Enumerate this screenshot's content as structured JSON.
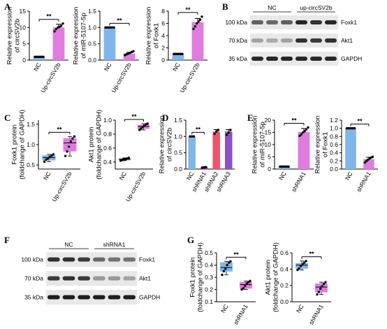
{
  "panels": {
    "A": {
      "label": "A"
    },
    "B": {
      "label": "B"
    },
    "C": {
      "label": "C"
    },
    "D": {
      "label": "D"
    },
    "E": {
      "label": "E"
    },
    "F": {
      "label": "F"
    },
    "G": {
      "label": "G"
    }
  },
  "colors": {
    "blue": "#7fb6ea",
    "pink": "#e07ce0",
    "red": "#f0566a",
    "magenta": "#d0309a",
    "purple": "#8a50c8",
    "dots": "#000000"
  },
  "chart_data": [
    {
      "id": "A1",
      "type": "bar",
      "title": "",
      "ylabel": "Relative expression of circSV2b",
      "ylim": [
        0,
        15
      ],
      "yticks": [
        0,
        5,
        10,
        15
      ],
      "categories": [
        "NC",
        "Up-circSV2b"
      ],
      "values": [
        1,
        10
      ],
      "errors": [
        0,
        1
      ],
      "colors": [
        "#7fb6ea",
        "#e07ce0"
      ],
      "significance": "**",
      "points": [
        [
          1,
          1,
          1,
          1,
          1,
          1
        ],
        [
          8.8,
          9.5,
          10,
          10.2,
          10.5,
          11.2
        ]
      ]
    },
    {
      "id": "A2",
      "type": "bar",
      "title": "",
      "ylabel": "Relative expression of miR-5107-5p",
      "ylim": [
        0,
        1.5
      ],
      "yticks": [
        0,
        0.5,
        1,
        1.5
      ],
      "categories": [
        "NC",
        "Up-circSV2b"
      ],
      "values": [
        1,
        0.2
      ],
      "errors": [
        0,
        0.04
      ],
      "colors": [
        "#7fb6ea",
        "#e07ce0"
      ],
      "significance": "**",
      "points": [
        [
          1,
          1,
          1,
          1,
          1,
          1
        ],
        [
          0.15,
          0.18,
          0.2,
          0.22,
          0.25,
          0.27
        ]
      ]
    },
    {
      "id": "A3",
      "type": "bar",
      "title": "",
      "ylabel": "Relative expression of Foxk1",
      "ylim": [
        0,
        8
      ],
      "yticks": [
        0,
        2,
        4,
        6,
        8
      ],
      "categories": [
        "NC",
        "Up-circSV2b"
      ],
      "values": [
        1,
        6.2
      ],
      "errors": [
        0,
        0.6
      ],
      "colors": [
        "#7fb6ea",
        "#e07ce0"
      ],
      "significance": "**",
      "points": [
        [
          1,
          1,
          1,
          1,
          1,
          1
        ],
        [
          5.1,
          5.5,
          6,
          6.3,
          6.6,
          7.1
        ]
      ]
    },
    {
      "id": "C1",
      "type": "box",
      "ylabel": "Foxk1 protein (foldchange of GAPDH)",
      "ylim": [
        0.4,
        1.6
      ],
      "yticks": [
        0.5,
        1.0,
        1.5
      ],
      "categories": [
        "NC",
        "Up-circSV2b"
      ],
      "colors": [
        "#7fb6ea",
        "#e07ce0"
      ],
      "significance": "**",
      "boxes": [
        {
          "min": 0.58,
          "q1": 0.62,
          "median": 0.68,
          "q3": 0.73,
          "max": 0.76
        },
        {
          "min": 0.72,
          "q1": 0.84,
          "median": 1.04,
          "q3": 1.15,
          "max": 1.2
        }
      ],
      "points": [
        [
          0.58,
          0.63,
          0.66,
          0.7,
          0.73,
          0.76
        ],
        [
          0.72,
          0.83,
          0.95,
          1.08,
          1.15,
          1.2
        ]
      ]
    },
    {
      "id": "C2",
      "type": "box",
      "ylabel": "Akt1 protein (foldchange of GAPDH)",
      "ylim": [
        0.3,
        1.0
      ],
      "yticks": [
        0.4,
        0.6,
        0.8,
        1.0
      ],
      "categories": [
        "NC",
        "Up-circSV2b"
      ],
      "colors": [
        "#7fb6ea",
        "#e07ce0"
      ],
      "significance": "**",
      "boxes": [
        {
          "min": 0.42,
          "q1": 0.43,
          "median": 0.44,
          "q3": 0.45,
          "max": 0.46
        },
        {
          "min": 0.86,
          "q1": 0.88,
          "median": 0.91,
          "q3": 0.93,
          "max": 0.95
        }
      ],
      "points": [
        [
          0.42,
          0.43,
          0.44,
          0.44,
          0.45,
          0.46
        ],
        [
          0.86,
          0.88,
          0.9,
          0.92,
          0.94,
          0.95
        ]
      ]
    },
    {
      "id": "D",
      "type": "bar",
      "ylabel": "Relative expression of circSV2b",
      "ylim": [
        0,
        1.5
      ],
      "yticks": [
        0.0,
        0.5,
        1.0,
        1.5
      ],
      "categories": [
        "NC",
        "shRNA1",
        "shRNA2",
        "shRNA3"
      ],
      "values": [
        1,
        0.05,
        1.15,
        1.15
      ],
      "errors": [
        0,
        0.02,
        0.06,
        0.06
      ],
      "colors": [
        "#7fb6ea",
        "#d0309a",
        "#f0566a",
        "#8a50c8"
      ],
      "significance": "**",
      "points": [
        [
          1,
          1,
          1
        ],
        [
          0.04,
          0.05,
          0.06
        ],
        [
          1.08,
          1.15,
          1.2
        ],
        [
          1.05,
          1.12,
          1.2
        ]
      ]
    },
    {
      "id": "E1",
      "type": "bar",
      "ylabel": "Relative expression of miR-5107-5p",
      "ylim": [
        0,
        20
      ],
      "yticks": [
        0,
        5,
        10,
        15,
        20
      ],
      "categories": [
        "NC",
        "shRNA1"
      ],
      "values": [
        1,
        15.2
      ],
      "errors": [
        0,
        1.4
      ],
      "colors": [
        "#7fb6ea",
        "#e07ce0"
      ],
      "significance": "**",
      "points": [
        [
          1,
          1,
          1,
          1,
          1,
          1
        ],
        [
          13.6,
          14.2,
          15,
          15.5,
          16.2,
          17
        ]
      ]
    },
    {
      "id": "E2",
      "type": "bar",
      "ylabel": "Relative expression of Foxk1",
      "ylim": [
        0,
        1.2
      ],
      "yticks": [
        0.0,
        0.2,
        0.4,
        0.6,
        0.8,
        1.0,
        1.2
      ],
      "categories": [
        "NC",
        "shRNA1"
      ],
      "values": [
        1,
        0.24
      ],
      "errors": [
        0,
        0.05
      ],
      "colors": [
        "#7fb6ea",
        "#e07ce0"
      ],
      "significance": "**",
      "points": [
        [
          1,
          1,
          1,
          1,
          1,
          1
        ],
        [
          0.16,
          0.2,
          0.23,
          0.26,
          0.28,
          0.3
        ]
      ]
    },
    {
      "id": "G1",
      "type": "box",
      "ylabel": "Foxk1 protein (foldchange of GAPDH)",
      "ylim": [
        0.1,
        0.5
      ],
      "yticks": [
        0.1,
        0.2,
        0.3,
        0.4,
        0.5
      ],
      "categories": [
        "NC",
        "shRNA1"
      ],
      "colors": [
        "#7fb6ea",
        "#e07ce0"
      ],
      "significance": "**",
      "boxes": [
        {
          "min": 0.32,
          "q1": 0.35,
          "median": 0.38,
          "q3": 0.42,
          "max": 0.43
        },
        {
          "min": 0.2,
          "q1": 0.21,
          "median": 0.24,
          "q3": 0.26,
          "max": 0.27
        }
      ],
      "points": [
        [
          0.32,
          0.35,
          0.37,
          0.4,
          0.42,
          0.43
        ],
        [
          0.2,
          0.21,
          0.23,
          0.25,
          0.26,
          0.27
        ]
      ]
    },
    {
      "id": "G2",
      "type": "box",
      "ylabel": "Akt1 protein (foldchange of GAPDH)",
      "ylim": [
        0.0,
        0.6
      ],
      "yticks": [
        0.0,
        0.2,
        0.4,
        0.6
      ],
      "categories": [
        "NC",
        "shRNA1"
      ],
      "colors": [
        "#7fb6ea",
        "#e07ce0"
      ],
      "significance": "**",
      "boxes": [
        {
          "min": 0.39,
          "q1": 0.41,
          "median": 0.45,
          "q3": 0.47,
          "max": 0.5
        },
        {
          "min": 0.09,
          "q1": 0.12,
          "median": 0.18,
          "q3": 0.22,
          "max": 0.24
        }
      ],
      "points": [
        [
          0.39,
          0.41,
          0.44,
          0.46,
          0.48,
          0.5
        ],
        [
          0.09,
          0.12,
          0.16,
          0.19,
          0.22,
          0.24
        ]
      ]
    }
  ],
  "blots": {
    "B": {
      "groups": [
        "NC",
        "up-circSV2b"
      ],
      "lanes": 6,
      "rows": [
        {
          "label": "Foxk1",
          "mw": "100 kDa",
          "intensity": [
            0.6,
            0.55,
            0.6,
            0.9,
            0.85,
            0.9
          ]
        },
        {
          "label": "Akt1",
          "mw": "70 kDa",
          "intensity": [
            0.25,
            0.2,
            0.25,
            0.85,
            0.8,
            0.85
          ]
        },
        {
          "label": "GAPDH",
          "mw": "35 kDa",
          "intensity": [
            0.9,
            0.9,
            0.9,
            0.9,
            0.9,
            0.9
          ]
        }
      ]
    },
    "F": {
      "groups": [
        "NC",
        "shRNA1"
      ],
      "lanes": 6,
      "rows": [
        {
          "label": "Foxk1",
          "mw": "100 kDa",
          "intensity": [
            0.85,
            0.85,
            0.8,
            0.55,
            0.5,
            0.5
          ]
        },
        {
          "label": "Akt1",
          "mw": "70 kDa",
          "intensity": [
            0.8,
            0.85,
            0.8,
            0.3,
            0.3,
            0.25
          ]
        },
        {
          "label": "GAPDH",
          "mw": "35 kDa",
          "intensity": [
            0.95,
            0.95,
            0.95,
            0.95,
            0.95,
            0.95
          ]
        }
      ]
    }
  }
}
